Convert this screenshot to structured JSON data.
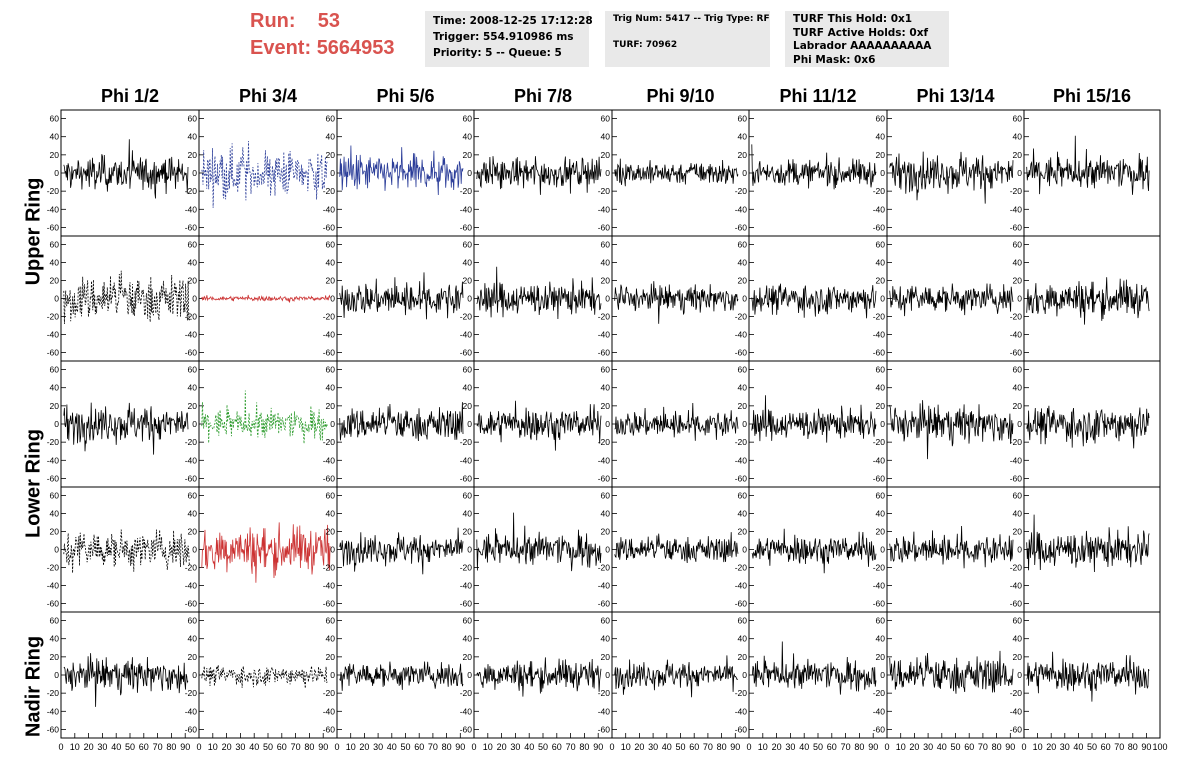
{
  "header": {
    "run_label": "Run:",
    "run_value": "53",
    "event_label": "Event:",
    "event_value": "5664953"
  },
  "info1": {
    "time": "Time: 2008-12-25 17:12:28",
    "trigger": "Trigger: 554.910986 ms",
    "priority": "Priority: 5 -- Queue: 5"
  },
  "info2": {
    "trig": "Trig Num: 5417 -- Trig Type: RF",
    "turf": "TURF: 70962"
  },
  "info3": {
    "hold": "TURF This Hold: 0x1",
    "active": "TURF Active Holds: 0xf",
    "labrador": "Labrador AAAAAAAAAA",
    "phimask": "Phi Mask: 0x6"
  },
  "colors": {
    "run_text": "#d9534f",
    "info_bg": "#e9e9e9",
    "trace_default": "#000000",
    "trace_blue": "#2b3d99",
    "trace_red": "#cc3333",
    "trace_green": "#2a9a2a"
  },
  "chart_data": {
    "type": "line",
    "columns": [
      "Phi 1/2",
      "Phi 3/4",
      "Phi 5/6",
      "Phi 7/8",
      "Phi 9/10",
      "Phi 11/12",
      "Phi 13/14",
      "Phi 15/16"
    ],
    "rows": [
      "Upper Ring",
      "Lower Ring",
      "Nadir Ring"
    ],
    "y_ticks": [
      60,
      40,
      20,
      0,
      -20,
      -40,
      -60
    ],
    "x_ticks": [
      0,
      10,
      20,
      30,
      40,
      50,
      60,
      70,
      80,
      90,
      100
    ],
    "ylim": [
      -65,
      65
    ],
    "xlim": [
      0,
      100
    ],
    "panel_styles": [
      [
        "solid",
        "dashed-dark",
        "solid-blue",
        "solid",
        "solid",
        "solid",
        "solid",
        "solid"
      ],
      [
        "dashed-black",
        "solid-red-small",
        "solid",
        "solid",
        "solid",
        "solid",
        "solid",
        "solid"
      ],
      [
        "solid",
        "dashed-green",
        "solid",
        "solid",
        "solid",
        "solid",
        "solid",
        "solid"
      ],
      [
        "dashed-black",
        "solid-red",
        "solid",
        "solid",
        "solid",
        "solid",
        "solid",
        "solid"
      ],
      [
        "solid",
        "dashed-black-small",
        "solid",
        "solid",
        "solid",
        "solid",
        "solid",
        "solid"
      ]
    ],
    "panel_amplitudes": [
      [
        20,
        30,
        22,
        18,
        14,
        16,
        22,
        20
      ],
      [
        28,
        3,
        20,
        20,
        16,
        18,
        18,
        22
      ],
      [
        22,
        18,
        20,
        20,
        16,
        18,
        22,
        22
      ],
      [
        24,
        28,
        18,
        20,
        16,
        18,
        18,
        22
      ],
      [
        20,
        12,
        16,
        18,
        16,
        18,
        22,
        20
      ]
    ]
  }
}
